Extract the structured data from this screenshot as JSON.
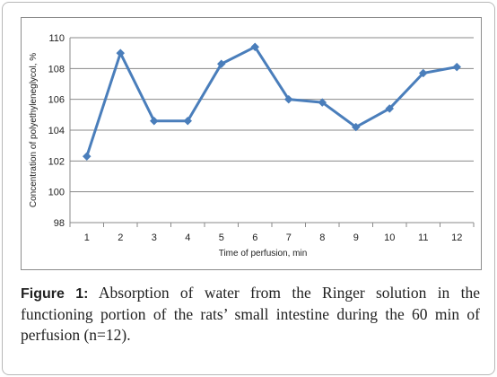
{
  "chart_data": {
    "type": "line",
    "x": [
      1,
      2,
      3,
      4,
      5,
      6,
      7,
      8,
      9,
      10,
      11,
      12
    ],
    "values": [
      102.3,
      109.0,
      104.6,
      104.6,
      108.3,
      109.4,
      106.0,
      105.8,
      104.2,
      105.4,
      107.7,
      108.1
    ],
    "xlabel": "Time of perfusion, min",
    "ylabel": "Concentration of polyethyleneglycol, %",
    "ylim": [
      98,
      110
    ],
    "yticks": [
      98,
      100,
      102,
      104,
      106,
      108,
      110
    ],
    "grid": true,
    "marker": "diamond",
    "color": "#4a7ebb"
  },
  "caption": {
    "label": "Figure 1:",
    "text": " Absorption of water from the Ringer solution in the functioning portion of the rats’ small intestine during the 60 min of perfusion (n=12)."
  }
}
